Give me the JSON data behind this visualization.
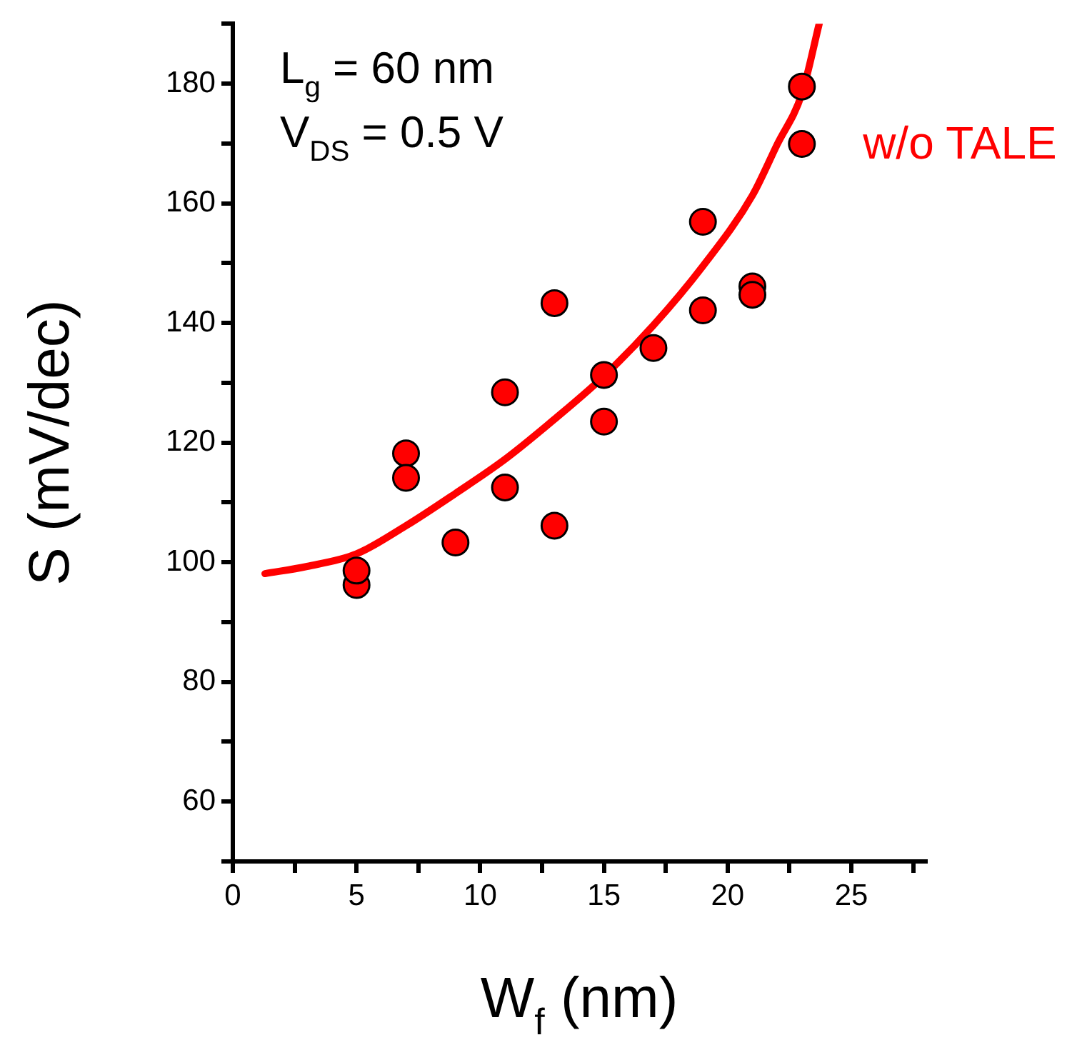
{
  "chart_data": {
    "type": "scatter",
    "xlabel": "W$_{f}$ (nm)",
    "ylabel": "S (mV/dec)",
    "annotations": [
      "L$_{g}$ = 60 nm",
      "V$_{DS}$ = 0.5 V"
    ],
    "xlim": [
      0,
      28
    ],
    "ylim": [
      50,
      190
    ],
    "xticks": [
      0,
      {
        "value": 2.5,
        "label": null
      },
      5,
      {
        "value": 7.5,
        "label": null
      },
      10,
      {
        "value": 12.5,
        "label": null
      },
      15,
      {
        "value": 17.5,
        "label": null
      },
      20,
      {
        "value": 22.5,
        "label": null
      },
      25,
      {
        "value": 27.5,
        "label": null
      }
    ],
    "yticks": [
      {
        "value": 50,
        "label": null
      },
      60,
      {
        "value": 70,
        "label": null
      },
      80,
      {
        "value": 90,
        "label": null
      },
      100,
      {
        "value": 110,
        "label": null
      },
      120,
      {
        "value": 130,
        "label": null
      },
      140,
      {
        "value": 150,
        "label": null
      },
      160,
      {
        "value": 170,
        "label": null
      },
      180,
      {
        "value": 190,
        "label": null
      }
    ],
    "grid": false,
    "marker": "circle",
    "series": [
      {
        "type": "scatter",
        "color": "#ff0000",
        "x": [
          5,
          5,
          7,
          7,
          9,
          11,
          11,
          13,
          13,
          15,
          15,
          17,
          19,
          19,
          21,
          21,
          23,
          23
        ],
        "values": [
          96.2,
          98.6,
          118.2,
          114.1,
          103.3,
          128.4,
          112.5,
          143.3,
          106.1,
          131.3,
          123.5,
          135.8,
          156.9,
          142.1,
          146.1,
          144.7,
          179.5,
          169.9
        ]
      },
      {
        "type": "line",
        "name": "w/o TALE",
        "color": "#ff0000",
        "marker": "none",
        "x": [
          1.3,
          3,
          5,
          7,
          9,
          11,
          13,
          15,
          17,
          19,
          21,
          22,
          23,
          23.7
        ],
        "values": [
          98.1,
          99.3,
          101.4,
          106.1,
          111.5,
          117.2,
          123.9,
          131.1,
          139.6,
          149.5,
          161.3,
          169.8,
          178.3,
          190
        ]
      }
    ]
  }
}
